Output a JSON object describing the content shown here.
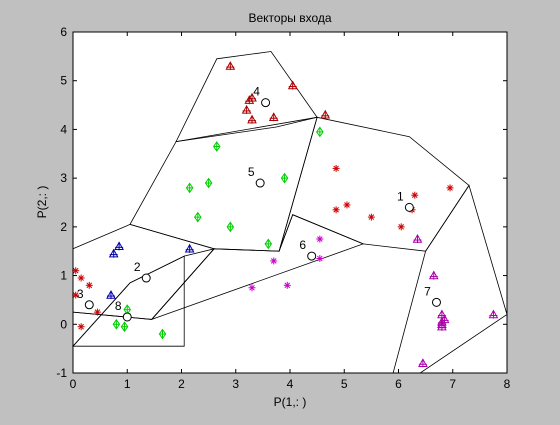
{
  "figure": {
    "background": "#c0c0c0"
  },
  "chart_data": {
    "type": "scatter",
    "title": "Векторы входа",
    "xlabel": "P(1,: )",
    "ylabel": "P(2,: )",
    "xlim": [
      0,
      8
    ],
    "ylim": [
      -1,
      6
    ],
    "xticks": [
      "0",
      "1",
      "2",
      "3",
      "4",
      "5",
      "6",
      "7",
      "8"
    ],
    "yticks": [
      "-1",
      "0",
      "1",
      "2",
      "3",
      "4",
      "5",
      "6"
    ],
    "grid": false,
    "regions": [
      [
        [
          2.65,
          5.45
        ],
        [
          3.65,
          5.6
        ],
        [
          4.5,
          4.25
        ],
        [
          3.75,
          4.05
        ],
        [
          1.9,
          3.75
        ]
      ],
      [
        [
          4.5,
          4.25
        ],
        [
          6.2,
          3.85
        ],
        [
          7.3,
          2.85
        ],
        [
          6.5,
          1.5
        ],
        [
          5.35,
          1.65
        ],
        [
          4.05,
          2.25
        ],
        [
          3.8,
          1.5
        ]
      ],
      [
        [
          1.9,
          3.75
        ],
        [
          4.5,
          4.25
        ],
        [
          3.8,
          1.5
        ],
        [
          2.6,
          1.55
        ],
        [
          1.05,
          2.05
        ]
      ],
      [
        [
          2.6,
          1.55
        ],
        [
          3.8,
          1.5
        ],
        [
          4.05,
          2.25
        ],
        [
          5.35,
          1.65
        ],
        [
          1.45,
          0.1
        ]
      ],
      [
        [
          0,
          1.55
        ],
        [
          1.05,
          2.05
        ],
        [
          2.6,
          1.55
        ],
        [
          1.45,
          0.1
        ],
        [
          0,
          0.25
        ]
      ],
      [
        [
          7.3,
          2.85
        ],
        [
          8.0,
          0.2
        ],
        [
          6.4,
          -1.0
        ],
        [
          5.9,
          -1.0
        ],
        [
          6.5,
          1.5
        ]
      ],
      [
        [
          0,
          0.25
        ],
        [
          1.45,
          0.1
        ],
        [
          2.6,
          1.55
        ],
        [
          2.05,
          1.4
        ],
        [
          1.05,
          0.85
        ],
        [
          0,
          -0.45
        ]
      ],
      [
        [
          1.05,
          0.85
        ],
        [
          2.05,
          1.4
        ],
        [
          2.05,
          -0.45
        ],
        [
          0,
          -0.45
        ]
      ]
    ],
    "series": [
      {
        "marker": "star",
        "color": "#cc0000",
        "x": [
          4.85,
          5.05,
          4.85,
          5.5,
          6.05,
          6.3,
          6.25,
          6.95,
          0.05,
          0.15,
          0.3,
          0.05,
          0.45,
          0.15
        ],
        "y": [
          3.2,
          2.45,
          2.35,
          2.2,
          2.0,
          2.65,
          2.35,
          2.8,
          1.1,
          0.95,
          0.8,
          0.6,
          0.25,
          -0.05
        ]
      },
      {
        "marker": "triangle",
        "color": "#aa0000",
        "x": [
          2.9,
          3.3,
          3.25,
          3.2,
          3.3,
          3.7,
          4.05,
          4.65
        ],
        "y": [
          5.3,
          4.65,
          4.6,
          4.4,
          4.2,
          4.25,
          4.9,
          4.3
        ]
      },
      {
        "marker": "diamond",
        "color": "#00cc00",
        "x": [
          2.65,
          2.15,
          2.5,
          3.9,
          4.55,
          2.3,
          2.9,
          3.6,
          0.8,
          1.0,
          0.95,
          1.65
        ],
        "y": [
          3.65,
          2.8,
          2.9,
          3.0,
          3.95,
          2.2,
          2.0,
          1.65,
          0.0,
          0.3,
          -0.05,
          -0.2
        ]
      },
      {
        "marker": "triangle",
        "color": "#0000aa",
        "x": [
          0.85,
          0.75,
          2.15,
          0.7
        ],
        "y": [
          1.6,
          1.45,
          1.55,
          0.6
        ]
      },
      {
        "marker": "star",
        "color": "#cc00cc",
        "x": [
          4.55,
          4.55,
          3.7,
          3.3,
          3.95
        ],
        "y": [
          1.75,
          1.35,
          1.3,
          0.75,
          0.8
        ]
      },
      {
        "marker": "triangle",
        "color": "#aa00aa",
        "x": [
          6.35,
          6.65,
          6.8,
          6.85,
          6.8,
          6.8,
          6.8,
          7.75,
          6.45
        ],
        "y": [
          1.75,
          1.0,
          0.2,
          0.1,
          0.05,
          -0.05,
          0.0,
          0.2,
          -0.8
        ]
      }
    ],
    "centers": {
      "marker": "circle",
      "labels": [
        "1",
        "2",
        "3",
        "4",
        "5",
        "6",
        "7",
        "8"
      ],
      "x": [
        6.2,
        1.35,
        0.3,
        3.55,
        3.45,
        4.4,
        6.7,
        1.0
      ],
      "y": [
        2.4,
        0.95,
        0.4,
        4.55,
        2.9,
        1.4,
        0.45,
        0.15
      ]
    }
  }
}
